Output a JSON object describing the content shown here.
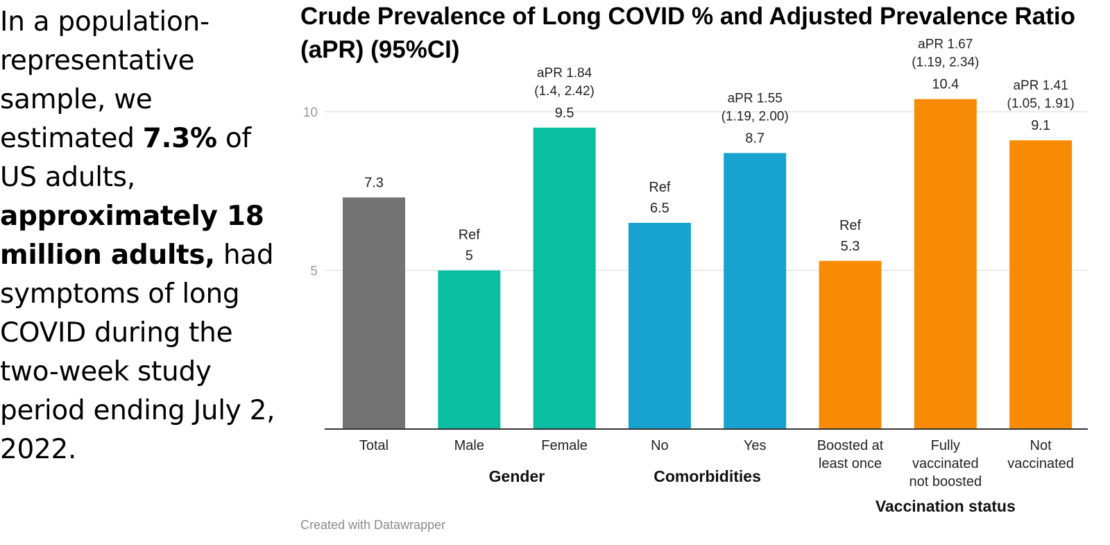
{
  "left_panel": {
    "parts": [
      {
        "text": "In a population-representative sample, we estimated ",
        "bold": false
      },
      {
        "text": "7.3%",
        "bold": true
      },
      {
        "text": " of US adults, ",
        "bold": false
      },
      {
        "text": "approximately 18 million adults,",
        "bold": true
      },
      {
        "text": " had symptoms of long COVID during the two-week study period ending July 2, 2022.",
        "bold": false
      }
    ]
  },
  "footer": "Created with Datawrapper",
  "chart_data": {
    "type": "bar",
    "title": "Crude Prevalence of Long COVID % and Adjusted Prevalence Ratio (aPR) (95%CI)",
    "xlabel": "",
    "ylabel": "",
    "ylim": [
      0,
      10.9
    ],
    "yticks": [
      5,
      10
    ],
    "grid": true,
    "categories": [
      "Total",
      "Male",
      "Female",
      "No",
      "Yes",
      "Boosted at least once",
      "Fully vaccinated not boosted",
      "Not vaccinated"
    ],
    "category_lines": [
      [
        "Total"
      ],
      [
        "Male"
      ],
      [
        "Female"
      ],
      [
        "No"
      ],
      [
        "Yes"
      ],
      [
        "Boosted at",
        "least once"
      ],
      [
        "Fully",
        "vaccinated",
        "not boosted"
      ],
      [
        "Not",
        "vaccinated"
      ]
    ],
    "values": [
      7.3,
      5,
      9.5,
      6.5,
      8.7,
      5.3,
      10.4,
      9.1
    ],
    "value_labels": [
      "7.3",
      "5",
      "9.5",
      "6.5",
      "8.7",
      "5.3",
      "10.4",
      "9.1"
    ],
    "annotations": [
      [],
      [
        "Ref"
      ],
      [
        "aPR 1.84",
        "(1.4, 2.42)"
      ],
      [
        "Ref"
      ],
      [
        "aPR 1.55",
        "(1.19, 2.00)"
      ],
      [
        "Ref"
      ],
      [
        "aPR 1.67",
        "(1.19, 2.34)"
      ],
      [
        "aPR 1.41",
        "(1.05, 1.91)"
      ]
    ],
    "colors": [
      "#737373",
      "#0bbea1",
      "#0bbea1",
      "#18a2cf",
      "#18a2cf",
      "#f88b05",
      "#f88b05",
      "#f88b05"
    ],
    "groups": [
      {
        "name": "Gender",
        "categories": [
          "Male",
          "Female"
        ]
      },
      {
        "name": "Comorbidities",
        "categories": [
          "No",
          "Yes"
        ]
      },
      {
        "name": "Vaccination status",
        "categories": [
          "Boosted at least once",
          "Fully vaccinated not boosted",
          "Not vaccinated"
        ]
      }
    ]
  }
}
